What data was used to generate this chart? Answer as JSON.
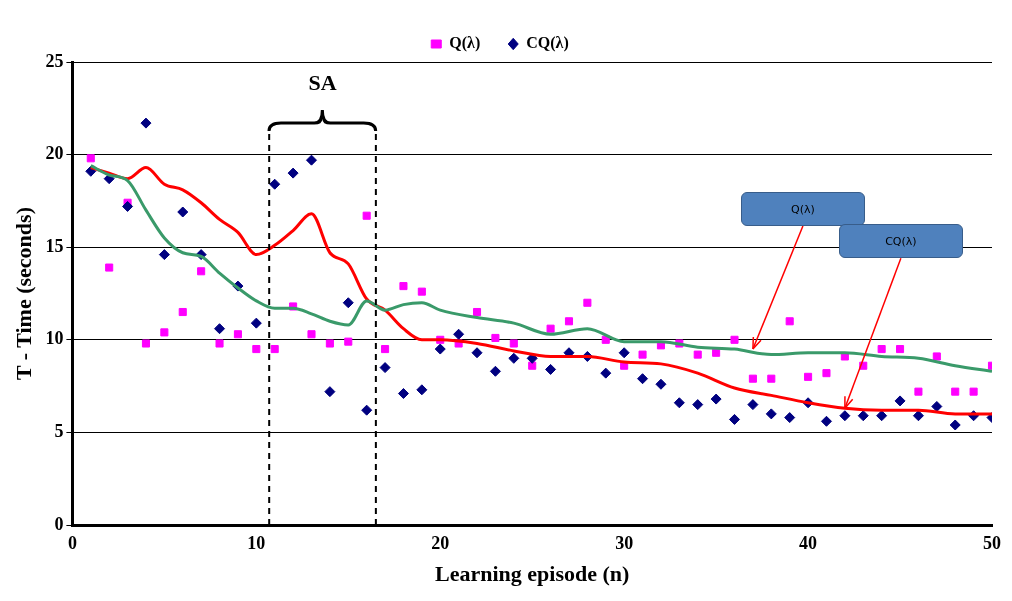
{
  "chart_data": {
    "type": "scatter",
    "xlabel": "Learning episode (n)",
    "ylabel": "T - Time (seconds)",
    "xlim": [
      0,
      50
    ],
    "xticks": [
      0,
      10,
      20,
      30,
      40,
      50
    ],
    "ylim": [
      0,
      25
    ],
    "yticks": [
      0,
      5,
      10,
      15,
      20,
      25
    ],
    "grid": "y",
    "legend": "top",
    "x": [
      1,
      2,
      3,
      4,
      5,
      6,
      7,
      8,
      9,
      10,
      11,
      12,
      13,
      14,
      15,
      16,
      17,
      18,
      19,
      20,
      21,
      22,
      23,
      24,
      25,
      26,
      27,
      28,
      29,
      30,
      31,
      32,
      33,
      34,
      35,
      36,
      37,
      38,
      39,
      40,
      41,
      42,
      43,
      44,
      45,
      46,
      47,
      48,
      49,
      50
    ],
    "series": [
      {
        "name": "Q(λ)",
        "color": "#ff00ff",
        "marker": "square",
        "values": [
          19.8,
          13.9,
          17.4,
          9.8,
          10.4,
          11.5,
          13.7,
          9.8,
          10.3,
          9.5,
          9.5,
          11.8,
          10.3,
          9.8,
          9.9,
          16.7,
          9.5,
          12.9,
          12.6,
          10.0,
          9.8,
          11.5,
          10.1,
          9.8,
          8.6,
          10.6,
          11.0,
          12.0,
          10.0,
          8.6,
          9.2,
          9.7,
          9.8,
          9.2,
          9.3,
          10.0,
          7.9,
          7.9,
          11.0,
          8.0,
          8.2,
          9.1,
          8.6,
          9.5,
          9.5,
          7.2,
          9.1,
          7.2,
          7.2,
          8.6
        ]
      },
      {
        "name": "CQ(λ)",
        "color": "#000080",
        "marker": "diamond",
        "values": [
          19.1,
          18.7,
          17.2,
          21.7,
          14.6,
          16.9,
          14.6,
          10.6,
          12.9,
          10.9,
          18.4,
          19.0,
          19.7,
          7.2,
          12.0,
          6.2,
          8.5,
          7.1,
          7.3,
          9.5,
          10.3,
          9.3,
          8.3,
          9.0,
          9.0,
          8.4,
          9.3,
          9.1,
          8.2,
          9.3,
          7.9,
          7.6,
          6.6,
          6.5,
          6.8,
          5.7,
          6.5,
          6.0,
          5.8,
          6.6,
          5.6,
          5.9,
          5.9,
          5.9,
          6.7,
          5.9,
          6.4,
          5.4,
          5.9,
          5.8
        ]
      },
      {
        "type": "line",
        "color": "#ff0000",
        "marker": "none",
        "x": [
          1,
          2,
          3,
          4,
          5,
          6,
          7,
          8,
          9,
          10,
          11,
          12,
          13,
          14,
          15,
          16,
          17,
          18,
          19,
          20,
          22,
          24,
          26,
          28,
          30,
          32,
          34,
          36,
          38,
          40,
          42,
          44,
          46,
          48,
          50
        ],
        "values": [
          19.3,
          19.0,
          18.7,
          19.3,
          18.4,
          18.1,
          17.4,
          16.5,
          15.8,
          14.6,
          15.1,
          15.9,
          16.8,
          14.7,
          14.1,
          12.2,
          11.6,
          10.6,
          10.0,
          10.0,
          9.8,
          9.4,
          9.1,
          9.1,
          8.8,
          8.7,
          8.2,
          7.4,
          7.0,
          6.6,
          6.3,
          6.2,
          6.2,
          6.0,
          6.0
        ]
      },
      {
        "type": "line",
        "color": "#3a9a6a",
        "marker": "none",
        "x": [
          1,
          2,
          3,
          4,
          5,
          6,
          7,
          8,
          9,
          10,
          11,
          12,
          13,
          14,
          15,
          16,
          17,
          18,
          19,
          20,
          22,
          24,
          26,
          28,
          30,
          32,
          34,
          36,
          38,
          40,
          42,
          44,
          46,
          48,
          50
        ],
        "values": [
          19.4,
          18.9,
          18.6,
          17.0,
          15.5,
          14.7,
          14.5,
          13.6,
          12.8,
          12.1,
          11.7,
          11.7,
          11.4,
          11.0,
          10.8,
          12.1,
          11.6,
          11.9,
          12.0,
          11.6,
          11.2,
          10.9,
          10.3,
          10.6,
          9.9,
          9.9,
          9.6,
          9.5,
          9.2,
          9.3,
          9.3,
          9.1,
          9.0,
          8.6,
          8.3
        ]
      }
    ],
    "ref_lines": [
      {
        "axis": "x",
        "value": 10.7,
        "line_style": "dashed",
        "color": "#000000"
      },
      {
        "axis": "x",
        "value": 16.5,
        "line_style": "dashed",
        "color": "#000000"
      }
    ],
    "annotations": [
      "SA",
      {
        "text": "Q(λ)",
        "x": 37,
        "y": 9.5
      },
      {
        "text": "CQ(λ)",
        "x": 42,
        "y": 6.3
      }
    ]
  }
}
